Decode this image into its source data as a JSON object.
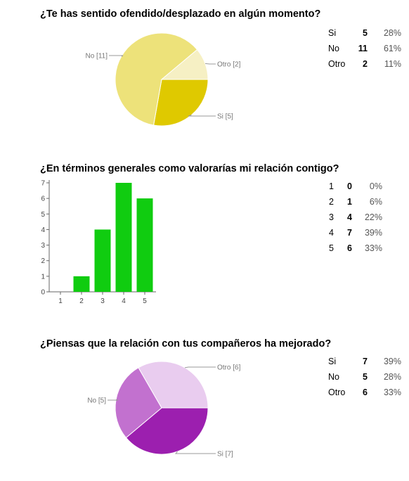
{
  "colors": {
    "q1": [
      "#dfc900",
      "#ede27a",
      "#f6f0c4"
    ],
    "q2_bar": "#10cc10",
    "q3": [
      "#9c1faf",
      "#c271cf",
      "#e9ccef"
    ]
  },
  "chart_data": [
    {
      "type": "pie",
      "title": "¿Te has sentido ofendido/desplazado en algún momento?",
      "categories": [
        "Si",
        "No",
        "Otro"
      ],
      "values": [
        5,
        11,
        2
      ],
      "percents": [
        "28%",
        "61%",
        "11%"
      ],
      "slice_labels": [
        "Si [5]",
        "No [11]",
        "Otro [2]"
      ]
    },
    {
      "type": "bar",
      "title": "¿En términos generales como valorarías mi relación contigo?",
      "categories": [
        "1",
        "2",
        "3",
        "4",
        "5"
      ],
      "values": [
        0,
        1,
        4,
        7,
        6
      ],
      "percents": [
        "0%",
        "6%",
        "22%",
        "39%",
        "33%"
      ],
      "ylim": [
        0,
        7
      ],
      "yticks": [
        "0",
        "1",
        "2",
        "3",
        "4",
        "5",
        "6",
        "7"
      ]
    },
    {
      "type": "pie",
      "title": "¿Piensas que la relación con tus compañeros ha mejorado?",
      "categories": [
        "Si",
        "No",
        "Otro"
      ],
      "values": [
        7,
        5,
        6
      ],
      "percents": [
        "39%",
        "28%",
        "33%"
      ],
      "slice_labels": [
        "Si [7]",
        "No [5]",
        "Otro [6]"
      ]
    }
  ]
}
